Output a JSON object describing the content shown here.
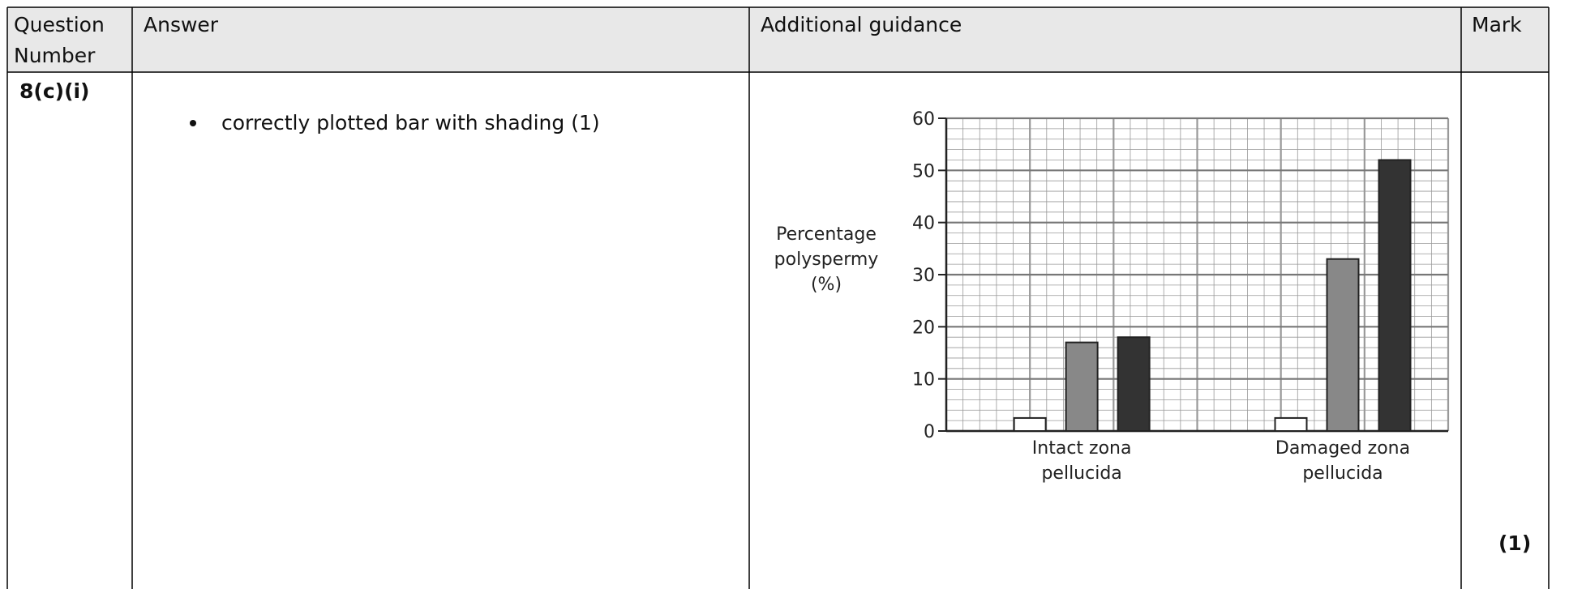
{
  "table": {
    "headers": [
      "Question Number",
      "Answer",
      "Additional guidance",
      "Mark"
    ],
    "rows": [
      {
        "question": "8(c)(i)",
        "answer": [
          "correctly plotted bar with shading (1)"
        ],
        "mark": "(1)"
      }
    ]
  },
  "chart_data": {
    "type": "bar",
    "y_label": "Percentage polyspermy (%)",
    "categories": [
      "Intact zona pellucida",
      "Damaged zona pellucida"
    ],
    "series": [
      {
        "color": "#ffffff",
        "values": [
          2.5,
          2.5
        ]
      },
      {
        "color": "#888888",
        "values": [
          17,
          33
        ]
      },
      {
        "color": "#333333",
        "values": [
          18,
          52
        ]
      }
    ],
    "ylim": [
      0,
      60
    ],
    "yticks": [
      0,
      10,
      20,
      30,
      40,
      50,
      60
    ],
    "grid": true
  }
}
